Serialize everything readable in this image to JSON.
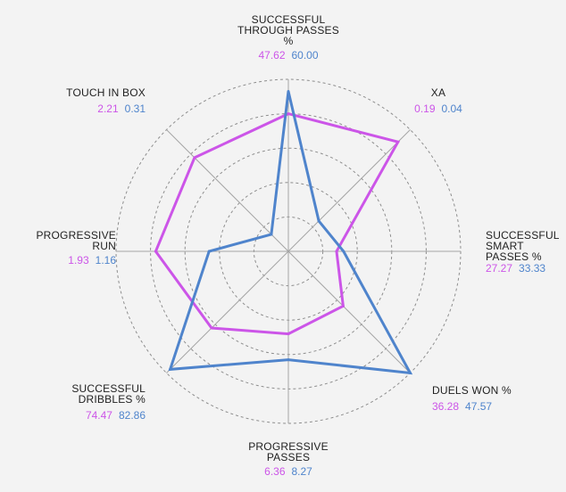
{
  "chart_data": {
    "type": "radar",
    "axes": [
      {
        "label_lines": [
          "SUCCESSFUL",
          "THROUGH PASSES",
          "%"
        ],
        "values": [
          "47.62",
          "60.00"
        ]
      },
      {
        "label_lines": [
          "XA"
        ],
        "values": [
          "0.19",
          "0.04"
        ]
      },
      {
        "label_lines": [
          "SUCCESSFUL",
          "SMART",
          "PASSES %"
        ],
        "values": [
          "27.27",
          "33.33"
        ]
      },
      {
        "label_lines": [
          "DUELS WON %"
        ],
        "values": [
          "36.28",
          "47.57"
        ]
      },
      {
        "label_lines": [
          "PROGRESSIVE",
          "PASSES"
        ],
        "values": [
          "6.36",
          "8.27"
        ]
      },
      {
        "label_lines": [
          "SUCCESSFUL",
          "DRIBBLES %"
        ],
        "values": [
          "74.47",
          "82.86"
        ]
      },
      {
        "label_lines": [
          "PROGRESSIVE",
          "RUN"
        ],
        "values": [
          "1.93",
          "1.16"
        ]
      },
      {
        "label_lines": [
          "TOUCH IN BOX"
        ],
        "values": [
          "2.21",
          "0.31"
        ]
      }
    ],
    "series": [
      {
        "color": "#cc55e8",
        "radius_fraction": [
          0.8,
          0.9,
          0.28,
          0.45,
          0.48,
          0.63,
          0.77,
          0.77
        ]
      },
      {
        "color": "#4f84cc",
        "radius_fraction": [
          0.93,
          0.25,
          0.32,
          1.0,
          0.63,
          0.97,
          0.46,
          0.14
        ]
      }
    ],
    "rings": 5,
    "grid": true,
    "legend": "none"
  }
}
